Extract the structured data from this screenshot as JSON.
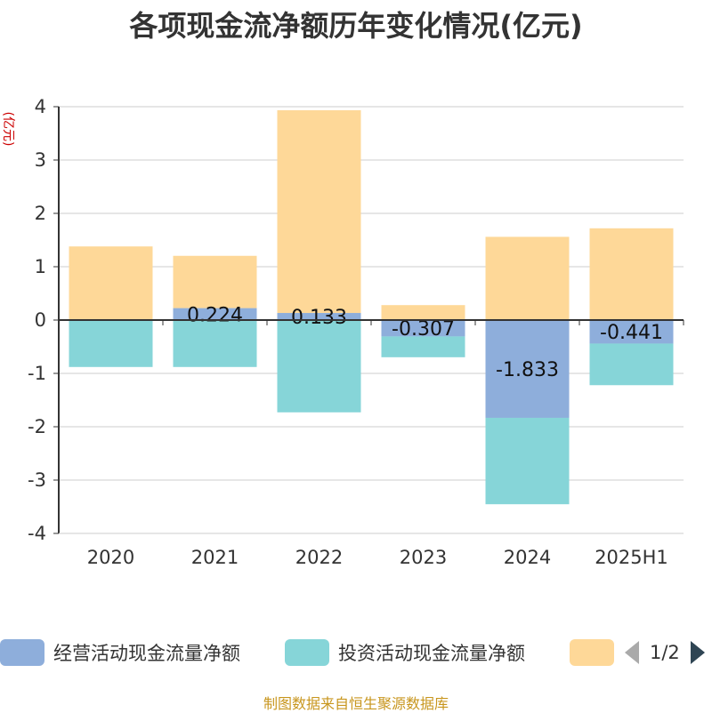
{
  "chart_data": {
    "type": "bar",
    "title": "各项现金流净额历年变化情况(亿元)",
    "ylabel": "(亿元)",
    "categories": [
      "2020",
      "2021",
      "2022",
      "2023",
      "2024",
      "2025H1"
    ],
    "ylim": [
      -4,
      4
    ],
    "yticks": [
      "4",
      "3",
      "2",
      "1",
      "0",
      "-1",
      "-2",
      "-3",
      "-4"
    ],
    "stacked": true,
    "grid": true,
    "series": [
      {
        "name": "经营活动现金流量净额",
        "color": "#8eaedb",
        "values": [
          0.0,
          0.224,
          0.133,
          -0.307,
          -1.833,
          -0.441
        ],
        "labels": [
          "",
          "0.224",
          "0.133",
          "-0.307",
          "-1.833",
          "-0.441"
        ]
      },
      {
        "name": "投资活动现金流量净额",
        "color": "#86d5d8",
        "values": [
          -0.88,
          -0.88,
          -1.73,
          -0.39,
          -1.62,
          -0.78
        ]
      },
      {
        "name": "",
        "color": "#fed898",
        "values": [
          1.38,
          0.98,
          3.8,
          0.28,
          1.56,
          1.72
        ]
      }
    ],
    "legend": {
      "position": "bottom",
      "page": "1/2"
    },
    "source": "制图数据来自恒生聚源数据库"
  }
}
